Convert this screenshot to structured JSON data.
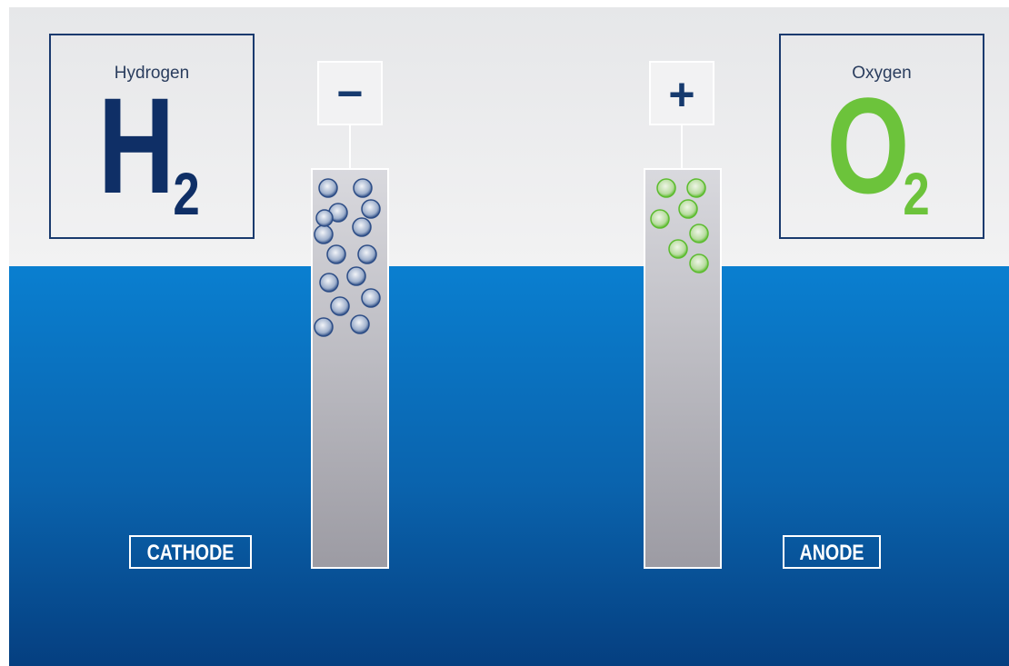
{
  "cathode": {
    "element_name": "Hydrogen",
    "symbol": "H",
    "subscript": "2",
    "polarity": "−",
    "label": "CATHODE"
  },
  "anode": {
    "element_name": "Oxygen",
    "symbol": "O",
    "subscript": "2",
    "polarity": "+",
    "label": "ANODE"
  }
}
